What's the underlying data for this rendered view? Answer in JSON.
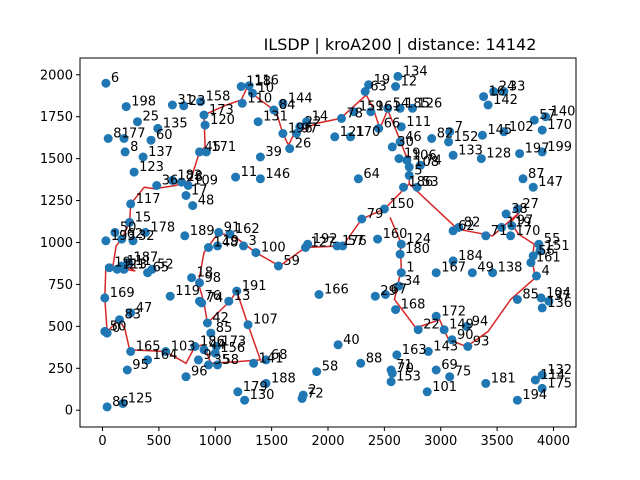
{
  "chart_data": {
    "type": "scatter",
    "title": "ILSDP | kroA200 | distance: 14142",
    "xlabel": "",
    "ylabel": "",
    "xlim": [
      -200,
      4200
    ],
    "ylim": [
      -100,
      2100
    ],
    "x_ticks": [
      0,
      500,
      1000,
      1500,
      2000,
      2500,
      3000,
      3500,
      4000
    ],
    "y_ticks": [
      0,
      250,
      500,
      750,
      1000,
      1250,
      1500,
      1750,
      2000
    ],
    "grid": false,
    "point_color": "#1f77b4",
    "route_color": "#d62728",
    "points": [
      {
        "id": "6",
        "x": 30,
        "y": 1950
      },
      {
        "id": "198",
        "x": 210,
        "y": 1810
      },
      {
        "id": "31",
        "x": 620,
        "y": 1820
      },
      {
        "id": "23",
        "x": 720,
        "y": 1815
      },
      {
        "id": "158",
        "x": 870,
        "y": 1840
      },
      {
        "id": "173",
        "x": 900,
        "y": 1760
      },
      {
        "id": "118",
        "x": 1230,
        "y": 1930
      },
      {
        "id": "116",
        "x": 1300,
        "y": 1935
      },
      {
        "id": "10",
        "x": 1330,
        "y": 1890
      },
      {
        "id": "110",
        "x": 1240,
        "y": 1830
      },
      {
        "id": "144",
        "x": 1600,
        "y": 1830
      },
      {
        "id": "84",
        "x": 1520,
        "y": 1790
      },
      {
        "id": "131",
        "x": 1380,
        "y": 1720
      },
      {
        "id": "25",
        "x": 310,
        "y": 1720
      },
      {
        "id": "135",
        "x": 490,
        "y": 1680
      },
      {
        "id": "120",
        "x": 910,
        "y": 1700
      },
      {
        "id": "81",
        "x": 50,
        "y": 1620
      },
      {
        "id": "77",
        "x": 190,
        "y": 1620
      },
      {
        "id": "60",
        "x": 430,
        "y": 1610
      },
      {
        "id": "8",
        "x": 200,
        "y": 1540
      },
      {
        "id": "137",
        "x": 360,
        "y": 1510
      },
      {
        "id": "171",
        "x": 920,
        "y": 1540
      },
      {
        "id": "45",
        "x": 860,
        "y": 1540
      },
      {
        "id": "39",
        "x": 1400,
        "y": 1510
      },
      {
        "id": "26",
        "x": 1660,
        "y": 1560
      },
      {
        "id": "196",
        "x": 1600,
        "y": 1650
      },
      {
        "id": "97",
        "x": 1720,
        "y": 1650
      },
      {
        "id": "14",
        "x": 1810,
        "y": 1720
      },
      {
        "id": "22",
        "x": 1750,
        "y": 1690
      },
      {
        "id": "78",
        "x": 2120,
        "y": 1740
      },
      {
        "id": "123",
        "x": 280,
        "y": 1420
      },
      {
        "id": "36",
        "x": 480,
        "y": 1340
      },
      {
        "id": "183",
        "x": 620,
        "y": 1370
      },
      {
        "id": "28",
        "x": 700,
        "y": 1360
      },
      {
        "id": "109",
        "x": 760,
        "y": 1340
      },
      {
        "id": "17",
        "x": 740,
        "y": 1280
      },
      {
        "id": "48",
        "x": 800,
        "y": 1220
      },
      {
        "id": "11",
        "x": 1180,
        "y": 1390
      },
      {
        "id": "146",
        "x": 1400,
        "y": 1380
      },
      {
        "id": "117",
        "x": 250,
        "y": 1230
      },
      {
        "id": "15",
        "x": 240,
        "y": 1120
      },
      {
        "id": "50",
        "x": 110,
        "y": 1060
      },
      {
        "id": "178",
        "x": 380,
        "y": 1060
      },
      {
        "id": "189",
        "x": 730,
        "y": 1040
      },
      {
        "id": "91",
        "x": 1030,
        "y": 1060
      },
      {
        "id": "162",
        "x": 1130,
        "y": 1050
      },
      {
        "id": "193",
        "x": 30,
        "y": 1010
      },
      {
        "id": "62",
        "x": 170,
        "y": 1020
      },
      {
        "id": "32",
        "x": 270,
        "y": 1010
      },
      {
        "id": "148",
        "x": 940,
        "y": 970
      },
      {
        "id": "19",
        "x": 1020,
        "y": 980
      },
      {
        "id": "3",
        "x": 1250,
        "y": 980
      },
      {
        "id": "100",
        "x": 1360,
        "y": 940
      },
      {
        "id": "59",
        "x": 1560,
        "y": 860
      },
      {
        "id": "192",
        "x": 1820,
        "y": 990
      },
      {
        "id": "127",
        "x": 1800,
        "y": 970
      },
      {
        "id": "176",
        "x": 2080,
        "y": 980
      },
      {
        "id": "57",
        "x": 2130,
        "y": 980
      },
      {
        "id": "79",
        "x": 2300,
        "y": 1140
      },
      {
        "id": "150",
        "x": 2500,
        "y": 1200
      },
      {
        "id": "160",
        "x": 2440,
        "y": 1020
      },
      {
        "id": "124",
        "x": 2650,
        "y": 990
      },
      {
        "id": "180",
        "x": 2640,
        "y": 930
      },
      {
        "id": "1",
        "x": 2650,
        "y": 820
      },
      {
        "id": "34",
        "x": 2630,
        "y": 740
      },
      {
        "id": "29",
        "x": 2420,
        "y": 680
      },
      {
        "id": "67",
        "x": 2510,
        "y": 690
      },
      {
        "id": "168",
        "x": 2600,
        "y": 600
      },
      {
        "id": "22b",
        "x": 2800,
        "y": 480
      },
      {
        "id": "172",
        "x": 2960,
        "y": 560
      },
      {
        "id": "149",
        "x": 3030,
        "y": 480
      },
      {
        "id": "94",
        "x": 3230,
        "y": 500
      },
      {
        "id": "90",
        "x": 3100,
        "y": 420
      },
      {
        "id": "93",
        "x": 3240,
        "y": 380
      },
      {
        "id": "143",
        "x": 2890,
        "y": 350
      },
      {
        "id": "163",
        "x": 2610,
        "y": 330
      },
      {
        "id": "71",
        "x": 2560,
        "y": 240
      },
      {
        "id": "70",
        "x": 2570,
        "y": 220
      },
      {
        "id": "153",
        "x": 2560,
        "y": 170
      },
      {
        "id": "69",
        "x": 2960,
        "y": 240
      },
      {
        "id": "75",
        "x": 3080,
        "y": 200
      },
      {
        "id": "101",
        "x": 2880,
        "y": 110
      },
      {
        "id": "181",
        "x": 3400,
        "y": 160
      },
      {
        "id": "194",
        "x": 3680,
        "y": 60
      },
      {
        "id": "114",
        "x": 3840,
        "y": 180
      },
      {
        "id": "132",
        "x": 3900,
        "y": 210
      },
      {
        "id": "175",
        "x": 3900,
        "y": 130
      },
      {
        "id": "85",
        "x": 3680,
        "y": 660
      },
      {
        "id": "4",
        "x": 3850,
        "y": 800
      },
      {
        "id": "104",
        "x": 3890,
        "y": 670
      },
      {
        "id": "37",
        "x": 3960,
        "y": 650
      },
      {
        "id": "136",
        "x": 3900,
        "y": 610
      },
      {
        "id": "167",
        "x": 2960,
        "y": 820
      },
      {
        "id": "184",
        "x": 3110,
        "y": 890
      },
      {
        "id": "49",
        "x": 3280,
        "y": 820
      },
      {
        "id": "138",
        "x": 3460,
        "y": 820
      },
      {
        "id": "55",
        "x": 3870,
        "y": 990
      },
      {
        "id": "151",
        "x": 3880,
        "y": 950
      },
      {
        "id": "56",
        "x": 3820,
        "y": 920
      },
      {
        "id": "161",
        "x": 3800,
        "y": 880
      },
      {
        "id": "165",
        "x": 250,
        "y": 350
      },
      {
        "id": "103",
        "x": 560,
        "y": 350
      },
      {
        "id": "164",
        "x": 400,
        "y": 300
      },
      {
        "id": "95",
        "x": 220,
        "y": 240
      },
      {
        "id": "96",
        "x": 740,
        "y": 200
      },
      {
        "id": "86",
        "x": 40,
        "y": 20
      },
      {
        "id": "125",
        "x": 180,
        "y": 40
      },
      {
        "id": "186",
        "x": 820,
        "y": 380
      },
      {
        "id": "44",
        "x": 900,
        "y": 360
      },
      {
        "id": "9",
        "x": 850,
        "y": 300
      },
      {
        "id": "156",
        "x": 1000,
        "y": 340
      },
      {
        "id": "35",
        "x": 940,
        "y": 270
      },
      {
        "id": "58b",
        "x": 1020,
        "y": 270
      },
      {
        "id": "85b",
        "x": 960,
        "y": 460
      },
      {
        "id": "173b",
        "x": 1010,
        "y": 380
      },
      {
        "id": "42",
        "x": 930,
        "y": 520
      },
      {
        "id": "107",
        "x": 1290,
        "y": 510
      },
      {
        "id": "141",
        "x": 1340,
        "y": 280
      },
      {
        "id": "68",
        "x": 1450,
        "y": 300
      },
      {
        "id": "179",
        "x": 1200,
        "y": 110
      },
      {
        "id": "130",
        "x": 1260,
        "y": 60
      },
      {
        "id": "188",
        "x": 1450,
        "y": 160
      },
      {
        "id": "2",
        "x": 1780,
        "y": 90
      },
      {
        "id": "72",
        "x": 1770,
        "y": 70
      },
      {
        "id": "58",
        "x": 1900,
        "y": 230
      },
      {
        "id": "40",
        "x": 2090,
        "y": 390
      },
      {
        "id": "88",
        "x": 2290,
        "y": 280
      },
      {
        "id": "166",
        "x": 1920,
        "y": 690
      },
      {
        "id": "169",
        "x": 20,
        "y": 670
      },
      {
        "id": "47",
        "x": 250,
        "y": 580
      },
      {
        "id": "83",
        "x": 150,
        "y": 540
      },
      {
        "id": "50b",
        "x": 20,
        "y": 470
      },
      {
        "id": "0",
        "x": 40,
        "y": 460
      },
      {
        "id": "119",
        "x": 600,
        "y": 680
      },
      {
        "id": "98",
        "x": 860,
        "y": 760
      },
      {
        "id": "18",
        "x": 790,
        "y": 790
      },
      {
        "id": "76",
        "x": 860,
        "y": 650
      },
      {
        "id": "74",
        "x": 880,
        "y": 640
      },
      {
        "id": "13",
        "x": 1120,
        "y": 650
      },
      {
        "id": "191",
        "x": 1190,
        "y": 710
      },
      {
        "id": "113",
        "x": 130,
        "y": 840
      },
      {
        "id": "111b",
        "x": 170,
        "y": 860
      },
      {
        "id": "52",
        "x": 440,
        "y": 840
      },
      {
        "id": "65",
        "x": 400,
        "y": 820
      },
      {
        "id": "187",
        "x": 230,
        "y": 880
      },
      {
        "id": "19b",
        "x": 60,
        "y": 850
      },
      {
        "id": "21",
        "x": 190,
        "y": 840
      },
      {
        "id": "64",
        "x": 2270,
        "y": 1380
      },
      {
        "id": "186b",
        "x": 2670,
        "y": 1330
      },
      {
        "id": "53",
        "x": 2790,
        "y": 1330
      },
      {
        "id": "5",
        "x": 2720,
        "y": 1400
      },
      {
        "id": "30",
        "x": 2570,
        "y": 1570
      },
      {
        "id": "46",
        "x": 2640,
        "y": 1600
      },
      {
        "id": "66",
        "x": 2450,
        "y": 1680
      },
      {
        "id": "111",
        "x": 2650,
        "y": 1690
      },
      {
        "id": "19c",
        "x": 2630,
        "y": 1500
      },
      {
        "id": "106",
        "x": 2700,
        "y": 1490
      },
      {
        "id": "108",
        "x": 2720,
        "y": 1450
      },
      {
        "id": "74b",
        "x": 2820,
        "y": 1460
      },
      {
        "id": "121",
        "x": 2060,
        "y": 1630
      },
      {
        "id": "170",
        "x": 2200,
        "y": 1630
      },
      {
        "id": "159",
        "x": 2230,
        "y": 1780
      },
      {
        "id": "161b",
        "x": 2380,
        "y": 1780
      },
      {
        "id": "19d",
        "x": 2360,
        "y": 1940
      },
      {
        "id": "63",
        "x": 2330,
        "y": 1900
      },
      {
        "id": "134",
        "x": 2620,
        "y": 1990
      },
      {
        "id": "12",
        "x": 2600,
        "y": 1930
      },
      {
        "id": "54",
        "x": 2530,
        "y": 1800
      },
      {
        "id": "185",
        "x": 2640,
        "y": 1800
      },
      {
        "id": "126",
        "x": 2750,
        "y": 1800
      },
      {
        "id": "7",
        "x": 3080,
        "y": 1660
      },
      {
        "id": "152",
        "x": 3070,
        "y": 1600
      },
      {
        "id": "82b",
        "x": 2920,
        "y": 1620
      },
      {
        "id": "133",
        "x": 3110,
        "y": 1520
      },
      {
        "id": "145",
        "x": 3370,
        "y": 1640
      },
      {
        "id": "128",
        "x": 3360,
        "y": 1500
      },
      {
        "id": "102",
        "x": 3560,
        "y": 1660
      },
      {
        "id": "16",
        "x": 3380,
        "y": 1870
      },
      {
        "id": "24",
        "x": 3470,
        "y": 1900
      },
      {
        "id": "33",
        "x": 3560,
        "y": 1900
      },
      {
        "id": "142",
        "x": 3420,
        "y": 1820
      },
      {
        "id": "57b",
        "x": 3830,
        "y": 1730
      },
      {
        "id": "140",
        "x": 3930,
        "y": 1750
      },
      {
        "id": "170b",
        "x": 3900,
        "y": 1670
      },
      {
        "id": "197",
        "x": 3700,
        "y": 1530
      },
      {
        "id": "199",
        "x": 3900,
        "y": 1540
      },
      {
        "id": "87",
        "x": 3730,
        "y": 1380
      },
      {
        "id": "147",
        "x": 3820,
        "y": 1330
      },
      {
        "id": "27",
        "x": 3680,
        "y": 1200
      },
      {
        "id": "38",
        "x": 3580,
        "y": 1170
      },
      {
        "id": "119b",
        "x": 3540,
        "y": 1090
      },
      {
        "id": "97b",
        "x": 3630,
        "y": 1100
      },
      {
        "id": "170c",
        "x": 3620,
        "y": 1040
      },
      {
        "id": "82",
        "x": 3160,
        "y": 1090
      },
      {
        "id": "62b",
        "x": 3110,
        "y": 1070
      },
      {
        "id": "71b",
        "x": 3400,
        "y": 1040
      }
    ],
    "labels": [
      "6",
      "198",
      "31",
      "23",
      "158",
      "173",
      "118",
      "116",
      "10",
      "110",
      "144",
      "84",
      "131",
      "25",
      "135",
      "120",
      "81",
      "77",
      "60",
      "8",
      "137",
      "171",
      "45",
      "39",
      "26",
      "196",
      "97",
      "14",
      "22",
      "78",
      "123",
      "36",
      "183",
      "28",
      "109",
      "17",
      "48",
      "11",
      "146",
      "117",
      "15",
      "50",
      "178",
      "189",
      "91",
      "162",
      "193",
      "62",
      "32",
      "148",
      "19",
      "3",
      "100",
      "59",
      "192",
      "127",
      "176",
      "57",
      "79",
      "150",
      "160",
      "124",
      "180",
      "1",
      "34",
      "29",
      "67",
      "168",
      "22",
      "172",
      "149",
      "94",
      "90",
      "93",
      "143",
      "163",
      "71",
      "70",
      "153",
      "69",
      "75",
      "101",
      "181",
      "194",
      "114",
      "132",
      "175",
      "85",
      "4",
      "104",
      "37",
      "136",
      "167",
      "184",
      "49",
      "138",
      "55",
      "151",
      "56",
      "161",
      "165",
      "103",
      "164",
      "95",
      "96",
      "86",
      "125",
      "186",
      "44",
      "9",
      "156",
      "35",
      "58",
      "85",
      "173",
      "42",
      "107",
      "141",
      "68",
      "179",
      "130",
      "188",
      "2",
      "72",
      "58",
      "40",
      "88",
      "166",
      "169",
      "47",
      "83",
      "50",
      "0",
      "119",
      "98",
      "18",
      "76",
      "74",
      "13",
      "191",
      "113",
      "111",
      "52",
      "65",
      "187",
      "19",
      "21",
      "64",
      "186",
      "53",
      "5",
      "30",
      "46",
      "66",
      "111",
      "19",
      "106",
      "108",
      "74",
      "121",
      "170",
      "159",
      "161",
      "19",
      "63",
      "134",
      "12",
      "54",
      "185",
      "126",
      "7",
      "152",
      "82",
      "133",
      "145",
      "128",
      "102",
      "16",
      "24",
      "33",
      "142",
      "57",
      "140",
      "170",
      "197",
      "199",
      "87",
      "147",
      "27",
      "38",
      "119",
      "97",
      "170",
      "82",
      "62",
      "71"
    ],
    "route": [
      [
        5,
        2550,
        1150,
        2640,
        1010,
        2650,
        840,
        2590,
        660,
        2780,
        490,
        2990,
        540,
        3070,
        420,
        3230,
        380,
        3420,
        470,
        3620,
        660,
        3840,
        790,
        3810,
        900,
        3830,
        990,
        3690,
        1050,
        3620,
        1120,
        3700,
        1180,
        3460,
        1040,
        3150,
        1080,
        2720,
        1350,
        2730,
        1510,
        2690,
        1520,
        2640,
        1610,
        2530,
        1790,
        2460,
        1680,
        2400,
        1800,
        2340,
        1880,
        2110,
        1740,
        1900,
        1710,
        1700,
        1650,
        1650,
        1580,
        1600,
        1650,
        1540,
        1780,
        1380,
        1860,
        1280,
        1920,
        1230,
        1850,
        1100,
        1820,
        900,
        1760,
        910,
        1570,
        860,
        1540,
        780,
        1370,
        650,
        1340,
        460,
        1320,
        370,
        1330,
        250,
        1230,
        240,
        1120,
        170,
        1020,
        120,
        980,
        90,
        850,
        140,
        840,
        210,
        840,
        240,
        850,
        290,
        830,
        30,
        860,
        20,
        670,
        40,
        470,
        150,
        540,
        200,
        480,
        240,
        360,
        560,
        350,
        740,
        280,
        820,
        380,
        900,
        390,
        960,
        280,
        1200,
        290,
        1400,
        300,
        1290,
        510,
        1190,
        710,
        1130,
        650,
        930,
        520,
        900,
        640,
        850,
        760,
        900,
        940,
        1030,
        1060,
        1200,
        1020,
        1360,
        940,
        1570,
        860,
        1800,
        970,
        2130,
        980,
        2300,
        1140,
        2500,
        1200,
        2720,
        1350
      ]
    ]
  }
}
